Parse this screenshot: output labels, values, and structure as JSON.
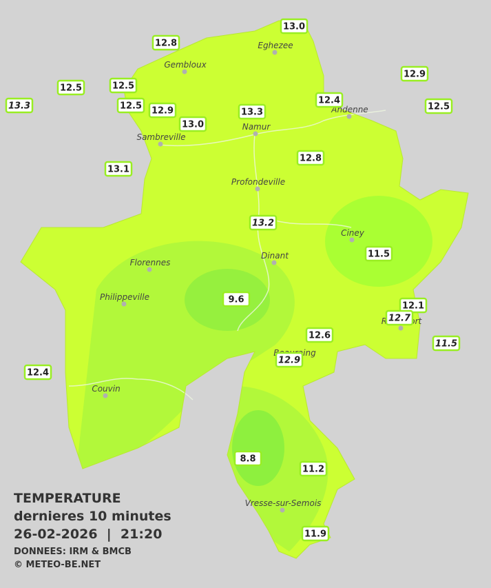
{
  "stations": [
    "13.0",
    "12.8",
    "12.9",
    "12.5",
    "12.5",
    "13.3",
    "12.5",
    "12.9",
    "12.4",
    "12.5",
    "13.3",
    "13.0",
    "12.8",
    "13.1",
    "13.2",
    "11.5",
    "9.6",
    "12.1",
    "12.7",
    "12.6",
    "11.5",
    "12.9",
    "12.4",
    "8.8",
    "11.2",
    "11.9"
  ],
  "places": [
    "Eghezee",
    "Gembloux",
    "Andenne",
    "Namur",
    "Sambreville",
    "Profondeville",
    "Ciney",
    "Dinant",
    "Florennes",
    "Philippeville",
    "Rochefort",
    "Beauraing",
    "Couvin",
    "Vresse-sur-Semois"
  ],
  "caption": {
    "title": "TEMPERATURE",
    "subtitle": "dernieres 10 minutes",
    "datetime": "26-02-2026  |  21:20",
    "source": "DONNEES: IRM & BMCB",
    "copyright": "© METEO-BE.NET"
  }
}
